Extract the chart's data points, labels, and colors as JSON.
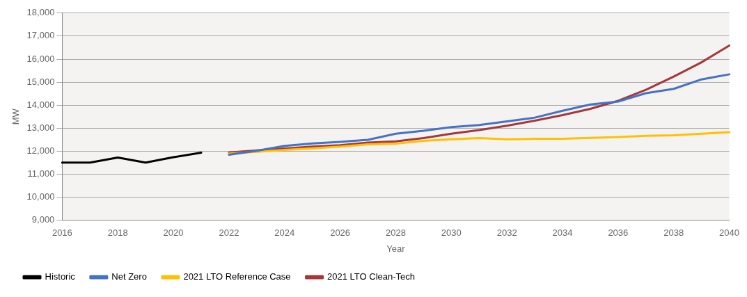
{
  "chart_data": {
    "type": "line",
    "xlabel": "Year",
    "ylabel": "MW",
    "categories": [
      "2016",
      null,
      "2018",
      null,
      "2020",
      null,
      "2022",
      null,
      "2024",
      null,
      "2026",
      null,
      "2028",
      null,
      "2030",
      null,
      "2032",
      null,
      "2034",
      null,
      "2036",
      null,
      "2038",
      null,
      "2040"
    ],
    "series": [
      {
        "name": "Historic",
        "color": "#000000",
        "values": [
          11510,
          11510,
          11730,
          11510,
          11740,
          11940,
          null,
          null,
          null,
          null,
          null,
          null,
          null,
          null,
          null,
          null,
          null,
          null,
          null,
          null,
          null,
          null,
          null,
          null,
          null
        ]
      },
      {
        "name": "Net Zero",
        "color": "#4472c4",
        "values": [
          null,
          null,
          null,
          null,
          null,
          null,
          11850,
          12020,
          12230,
          12340,
          12410,
          12500,
          12760,
          12890,
          13050,
          13140,
          13300,
          13460,
          13760,
          14030,
          14160,
          14520,
          14710,
          15120,
          15340
        ]
      },
      {
        "name": "2021 LTO Reference Case",
        "color": "#ffc000",
        "values": [
          null,
          null,
          null,
          null,
          null,
          null,
          11900,
          11980,
          12060,
          12130,
          12200,
          12300,
          12330,
          12450,
          12520,
          12570,
          12520,
          12540,
          12540,
          12580,
          12620,
          12670,
          12690,
          12760,
          12830
        ]
      },
      {
        "name": "2021 LTO Clean-Tech",
        "color": "#a5373a",
        "values": [
          null,
          null,
          null,
          null,
          null,
          null,
          11950,
          12040,
          12120,
          12200,
          12260,
          12380,
          12430,
          12570,
          12760,
          12920,
          13110,
          13330,
          13570,
          13840,
          14190,
          14670,
          15240,
          15860,
          16590
        ]
      }
    ],
    "ylim": [
      9000,
      18000
    ],
    "yticks": [
      {
        "value": 9000,
        "label": "9,000"
      },
      {
        "value": 10000,
        "label": "10,000"
      },
      {
        "value": 11000,
        "label": "11,000"
      },
      {
        "value": 12000,
        "label": "12,000"
      },
      {
        "value": 13000,
        "label": "13,000"
      },
      {
        "value": 14000,
        "label": "14,000"
      },
      {
        "value": 15000,
        "label": "15,000"
      },
      {
        "value": 16000,
        "label": "16,000"
      },
      {
        "value": 17000,
        "label": "17,000"
      },
      {
        "value": 18000,
        "label": "18,000"
      }
    ],
    "grid": "y",
    "legend": "bottom",
    "marker": "none",
    "line_style": "solid"
  }
}
